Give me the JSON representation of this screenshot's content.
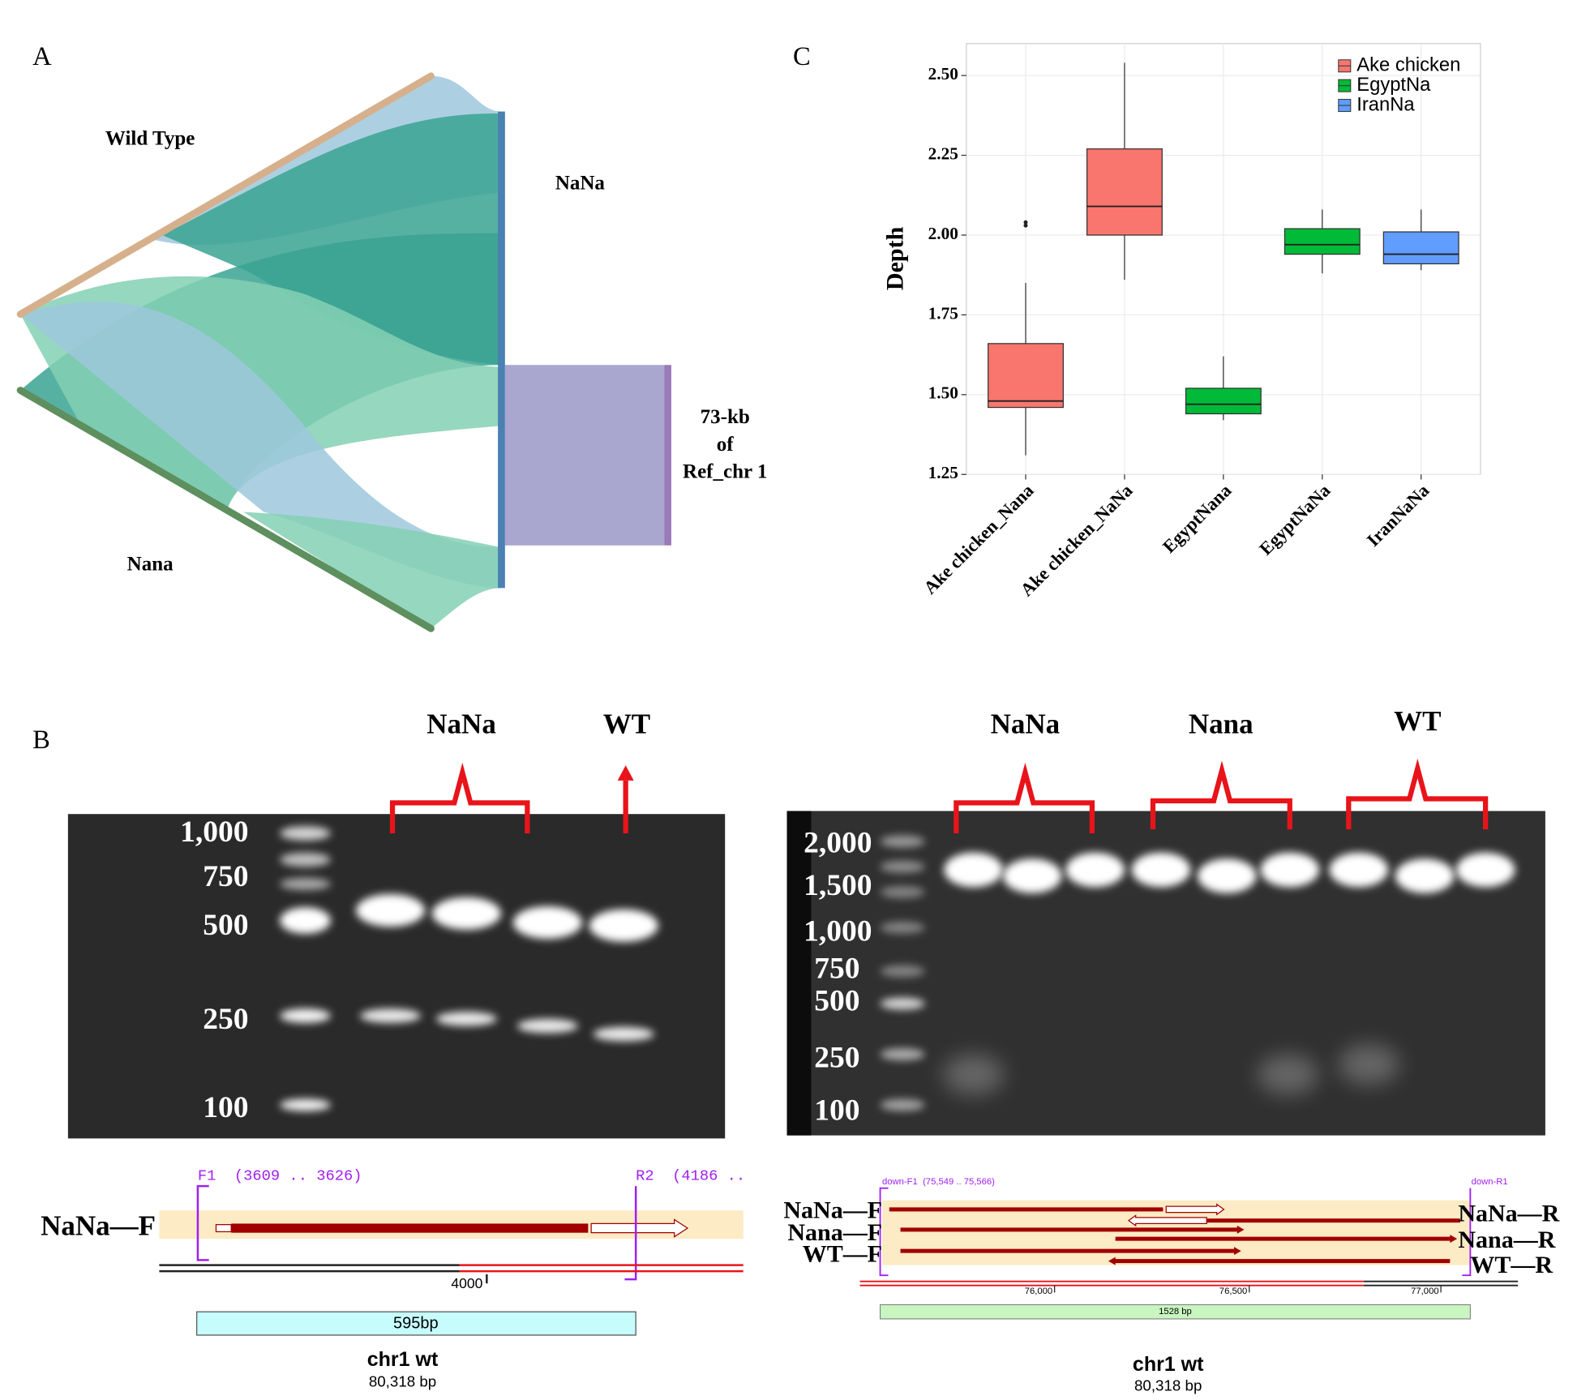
{
  "panel_labels": [
    "A",
    "B",
    "C"
  ],
  "sankey": {
    "nodes": [
      "Wild Type",
      "NaNa",
      "Nana"
    ],
    "ref_label": [
      "73-kb",
      "of",
      "Ref_chr 1"
    ]
  },
  "chart_data": {
    "type": "box",
    "y_label": "Depth",
    "categories": [
      "Ake chicken_Nana",
      "Ake chicken_NaNa",
      "EgyptNana",
      "EgyptNaNa",
      "IranNaNa"
    ],
    "ylim": [
      1.25,
      2.6
    ],
    "yticks": [
      1.25,
      {
        "value": 1.5,
        "label": "1.50"
      },
      1.75,
      {
        "value": 2,
        "label": "2.00"
      },
      2.25,
      {
        "value": 2.5,
        "label": "2.50"
      }
    ],
    "grid": true,
    "legend": "top-right",
    "series": [
      {
        "name": "Ake chicken",
        "color": "#F8766D",
        "min": [
          1.31,
          1.86,
          null,
          null,
          null
        ],
        "q1": [
          1.46,
          2.0,
          null,
          null,
          null
        ],
        "median": [
          1.48,
          2.09,
          null,
          null,
          null
        ],
        "q3": [
          1.66,
          2.27,
          null,
          null,
          null
        ],
        "max": [
          1.85,
          2.54,
          null,
          null,
          null
        ],
        "outliers": [
          [
            2.03,
            2.04
          ],
          [],
          [],
          [],
          []
        ]
      },
      {
        "name": "EgyptNa",
        "color": "#00BA38",
        "min": [
          null,
          null,
          1.42,
          1.88,
          null
        ],
        "q1": [
          null,
          null,
          1.44,
          1.94,
          null
        ],
        "median": [
          null,
          null,
          1.47,
          1.97,
          null
        ],
        "q3": [
          null,
          null,
          1.52,
          2.02,
          null
        ],
        "max": [
          null,
          null,
          1.62,
          2.08,
          null
        ],
        "outliers": [
          [],
          [],
          [],
          [],
          []
        ]
      },
      {
        "name": "IranNa",
        "color": "#619CFF",
        "min": [
          null,
          null,
          null,
          null,
          1.89
        ],
        "q1": [
          null,
          null,
          null,
          null,
          1.91
        ],
        "median": [
          null,
          null,
          null,
          null,
          1.94
        ],
        "q3": [
          null,
          null,
          null,
          null,
          2.01
        ],
        "max": [
          null,
          null,
          null,
          null,
          2.08
        ],
        "outliers": [
          [],
          [],
          [],
          [],
          []
        ]
      }
    ]
  },
  "gel_left": {
    "ladder": [
      "1,000",
      "750",
      "500",
      "250",
      "100"
    ],
    "groups": [
      "NaNa",
      "WT"
    ]
  },
  "gel_right": {
    "ladder": [
      "2,000",
      "1,500",
      "1,000",
      "750",
      "500",
      "250",
      "100"
    ],
    "groups": [
      "NaNa",
      "Nana",
      "WT"
    ]
  },
  "map_left": {
    "primers": [
      "F1  (3609 .. 3626)",
      "R2  (4186 .."
    ],
    "label": "NaNa—F",
    "tick": "4000",
    "product": "595bp",
    "title": "chr1 wt",
    "length": "80,318 bp"
  },
  "map_right": {
    "primers": [
      "down-F1  (75,549 .. 75,566)",
      "down-R1"
    ],
    "forward": [
      "NaNa—F",
      "Nana—F",
      "WT—F"
    ],
    "reverse": [
      "NaNa—R",
      "Nana—R",
      "WT—R"
    ],
    "ticks": [
      "76,000",
      "76,500",
      "77,000"
    ],
    "product": "1528 bp",
    "title": "chr1 wt",
    "length": "80,318 bp"
  }
}
